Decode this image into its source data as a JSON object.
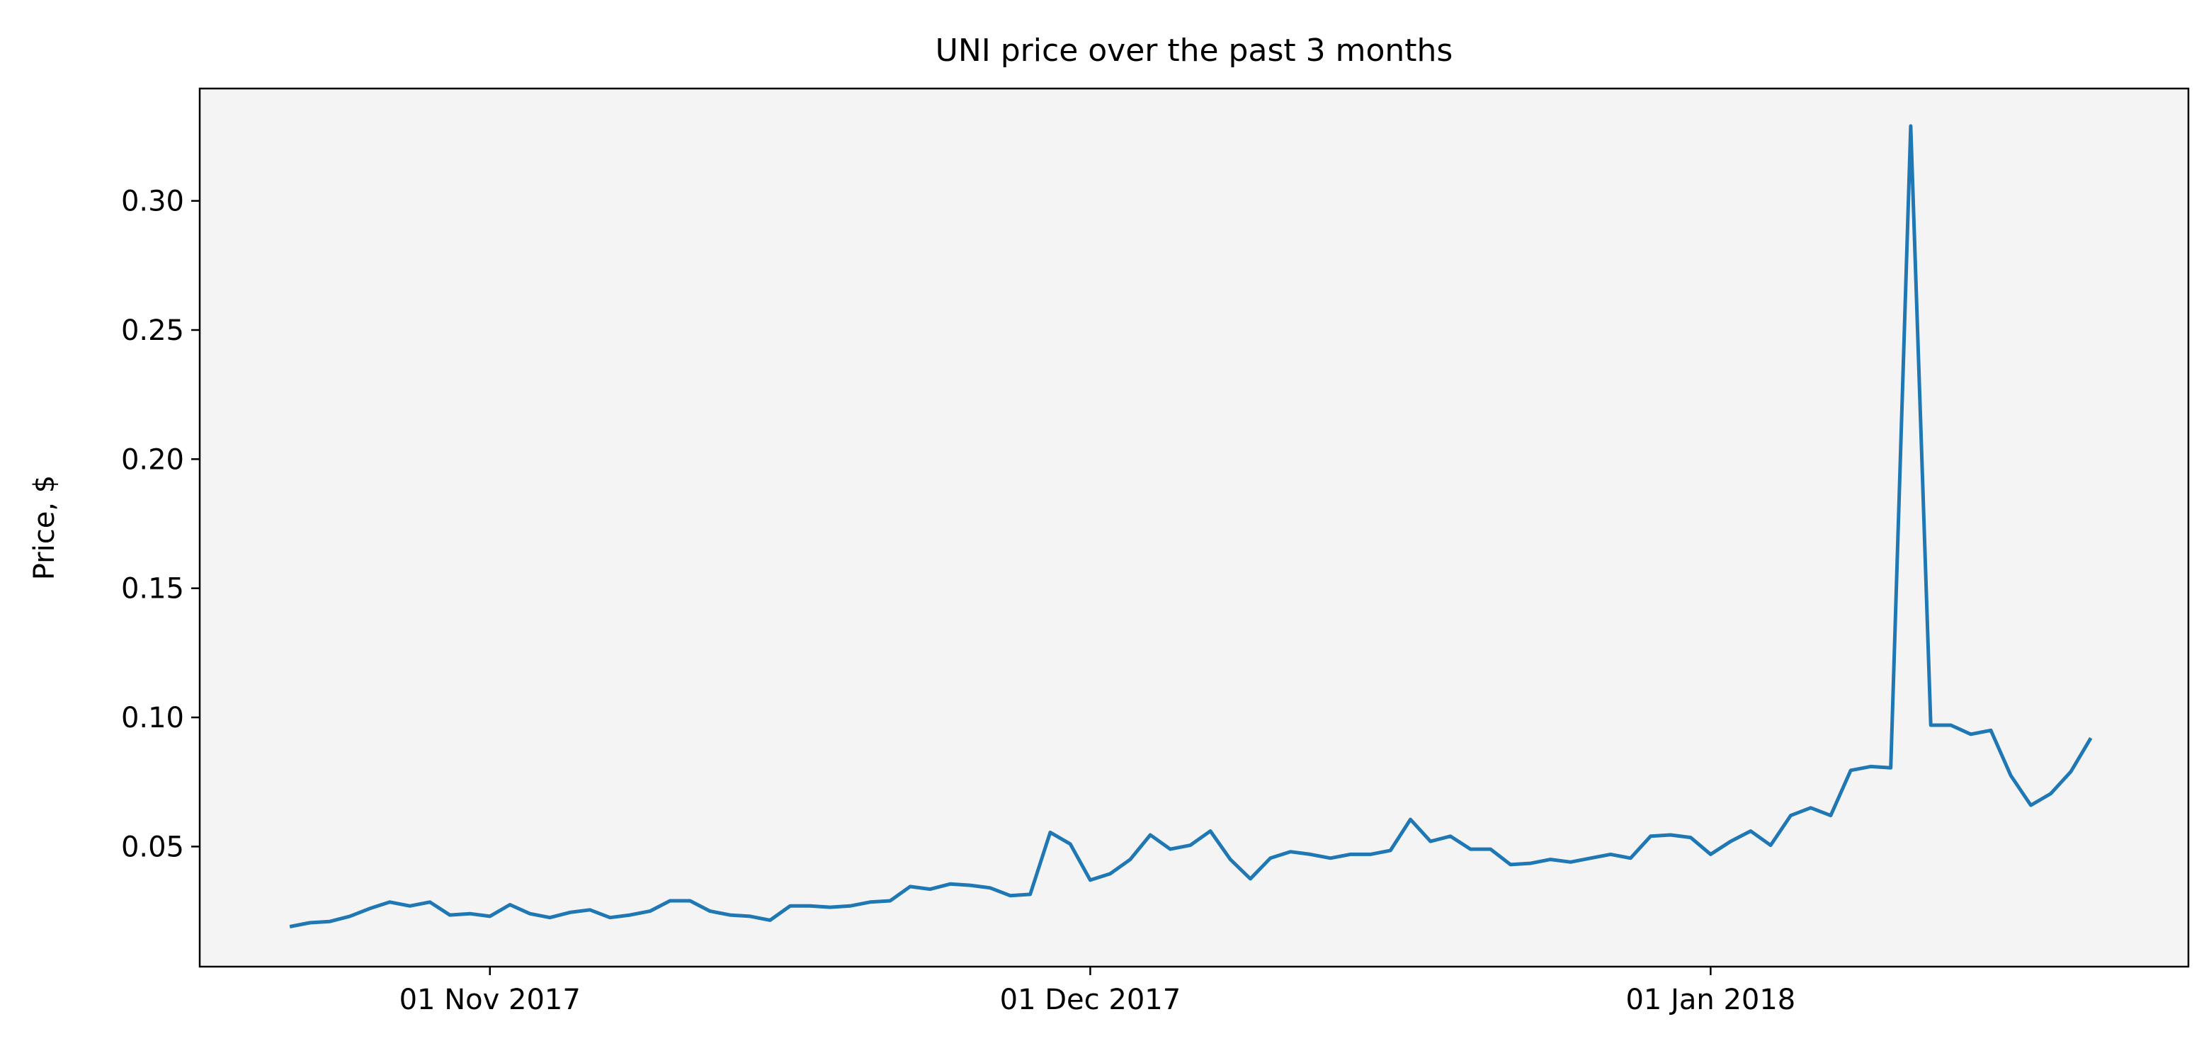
{
  "chart_data": {
    "type": "line",
    "title": "UNI price over the past 3 months",
    "xlabel": "",
    "ylabel": "Price, $",
    "x_tick_labels": [
      {
        "date": "2017-11-01",
        "label": "01 Nov 2017"
      },
      {
        "date": "2017-12-01",
        "label": "01 Dec 2017"
      },
      {
        "date": "2018-01-01",
        "label": "01 Jan 2018"
      }
    ],
    "y_ticks": [
      0.05,
      0.1,
      0.15,
      0.2,
      0.25,
      0.3
    ],
    "y_tick_labels": [
      "0.05",
      "0.10",
      "0.15",
      "0.20",
      "0.25",
      "0.30"
    ],
    "xlim": [
      "2017-10-17T12:00",
      "2018-01-24T21:00"
    ],
    "ylim": [
      0.0035,
      0.3435
    ],
    "grid": false,
    "colors": {
      "line": "#1f77b4",
      "plot_background": "#f4f4f4",
      "axes": "#000000"
    },
    "series": [
      {
        "x": [
          "2017-10-22",
          "2017-10-23",
          "2017-10-24",
          "2017-10-25",
          "2017-10-26",
          "2017-10-27",
          "2017-10-28",
          "2017-10-29",
          "2017-10-30",
          "2017-10-31",
          "2017-11-01",
          "2017-11-02",
          "2017-11-03",
          "2017-11-04",
          "2017-11-05",
          "2017-11-06",
          "2017-11-07",
          "2017-11-08",
          "2017-11-09",
          "2017-11-10",
          "2017-11-11",
          "2017-11-12",
          "2017-11-13",
          "2017-11-14",
          "2017-11-15",
          "2017-11-16",
          "2017-11-17",
          "2017-11-18",
          "2017-11-19",
          "2017-11-20",
          "2017-11-21",
          "2017-11-22",
          "2017-11-23",
          "2017-11-24",
          "2017-11-25",
          "2017-11-26",
          "2017-11-27",
          "2017-11-28",
          "2017-11-29",
          "2017-11-30",
          "2017-12-01",
          "2017-12-02",
          "2017-12-03",
          "2017-12-04",
          "2017-12-05",
          "2017-12-06",
          "2017-12-07",
          "2017-12-08",
          "2017-12-09",
          "2017-12-10",
          "2017-12-11",
          "2017-12-12",
          "2017-12-13",
          "2017-12-14",
          "2017-12-15",
          "2017-12-16",
          "2017-12-17",
          "2017-12-18",
          "2017-12-19",
          "2017-12-20",
          "2017-12-21",
          "2017-12-22",
          "2017-12-23",
          "2017-12-24",
          "2017-12-25",
          "2017-12-26",
          "2017-12-27",
          "2017-12-28",
          "2017-12-29",
          "2017-12-30",
          "2017-12-31",
          "2018-01-01",
          "2018-01-02",
          "2018-01-03",
          "2018-01-04",
          "2018-01-05",
          "2018-01-06",
          "2018-01-07",
          "2018-01-08",
          "2018-01-09",
          "2018-01-10",
          "2018-01-11",
          "2018-01-12",
          "2018-01-13",
          "2018-01-14",
          "2018-01-15",
          "2018-01-16",
          "2018-01-17",
          "2018-01-18",
          "2018-01-19",
          "2018-01-20"
        ],
        "values": [
          0.019,
          0.0205,
          0.021,
          0.023,
          0.026,
          0.0285,
          0.027,
          0.0285,
          0.0235,
          0.024,
          0.023,
          0.0275,
          0.024,
          0.0225,
          0.0245,
          0.0255,
          0.0225,
          0.0235,
          0.025,
          0.029,
          0.029,
          0.025,
          0.0235,
          0.023,
          0.0215,
          0.027,
          0.027,
          0.0265,
          0.027,
          0.0285,
          0.029,
          0.0345,
          0.0335,
          0.0355,
          0.035,
          0.034,
          0.031,
          0.0315,
          0.0555,
          0.051,
          0.037,
          0.0395,
          0.045,
          0.0545,
          0.049,
          0.0505,
          0.056,
          0.045,
          0.0375,
          0.0455,
          0.048,
          0.047,
          0.0455,
          0.047,
          0.047,
          0.0485,
          0.0605,
          0.052,
          0.054,
          0.049,
          0.049,
          0.043,
          0.0435,
          0.045,
          0.044,
          0.0455,
          0.047,
          0.0455,
          0.054,
          0.0545,
          0.0535,
          0.047,
          0.052,
          0.056,
          0.0505,
          0.062,
          0.065,
          0.062,
          0.0795,
          0.081,
          0.0805,
          0.329,
          0.097,
          0.097,
          0.0935,
          0.095,
          0.0775,
          0.066,
          0.0705,
          0.079,
          0.092
        ]
      }
    ]
  }
}
